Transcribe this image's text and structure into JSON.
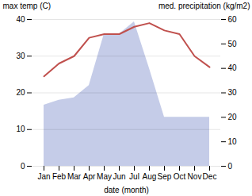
{
  "chart_data": {
    "type": "line",
    "categories": [
      "Jan",
      "Feb",
      "Mar",
      "Apr",
      "May",
      "Jun",
      "Jul",
      "Aug",
      "Sep",
      "Oct",
      "Nov",
      "Dec"
    ],
    "series": [
      {
        "type": "area",
        "axis": "y2",
        "color": "#c5cce8",
        "values": [
          25,
          27,
          28,
          33,
          54,
          54,
          59,
          40,
          20,
          20,
          20,
          20
        ]
      },
      {
        "type": "line",
        "color": "#c0504d",
        "values": [
          24.5,
          28,
          30,
          35,
          36,
          36,
          38,
          39,
          37,
          36,
          30,
          27
        ]
      }
    ],
    "xlabel": "date (month)",
    "ylabel": "max temp (C)",
    "y2label": "med. precipitation (kg/m2)",
    "ylim": [
      0,
      40
    ],
    "yticks": [
      0,
      10,
      20,
      30,
      40
    ],
    "y2lim": [
      0,
      60
    ],
    "y2ticks": [
      0,
      10,
      20,
      30,
      40,
      50,
      60
    ],
    "grid": true
  }
}
